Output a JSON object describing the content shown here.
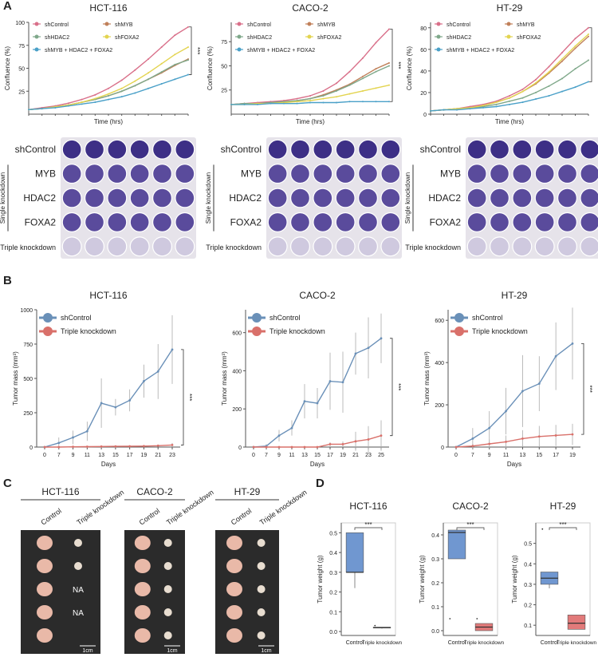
{
  "panel_labels": [
    "A",
    "B",
    "C",
    "D"
  ],
  "chart_data": [
    {
      "type": "line",
      "title": "HCT-116",
      "xlabel": "Time (hrs)",
      "ylabel": "Confluence (%)",
      "x": [
        0,
        12,
        24,
        36,
        48,
        60,
        72,
        84,
        96,
        108,
        120,
        132,
        144
      ],
      "xlim": [
        0,
        144
      ],
      "ylim": [
        0,
        100
      ],
      "yticks": [
        25,
        50,
        75,
        100
      ],
      "annotation": "***",
      "series": [
        {
          "name": "shControl",
          "color": "#d9708a",
          "values": [
            5,
            7,
            9,
            12,
            16,
            21,
            28,
            37,
            48,
            60,
            73,
            86,
            95
          ]
        },
        {
          "name": "shMYB",
          "color": "#c0805a",
          "values": [
            5,
            6,
            8,
            10,
            13,
            16,
            20,
            25,
            31,
            38,
            45,
            53,
            60
          ]
        },
        {
          "name": "shHDAC2",
          "color": "#7fa88a",
          "values": [
            5,
            6,
            8,
            10,
            13,
            16,
            20,
            25,
            31,
            38,
            46,
            54,
            59
          ]
        },
        {
          "name": "shFOXA2",
          "color": "#e3d450",
          "values": [
            5,
            6,
            8,
            10,
            13,
            17,
            22,
            28,
            36,
            45,
            55,
            65,
            73
          ]
        },
        {
          "name": "shMYB + HDAC2 + FOXA2",
          "color": "#4aa0c8",
          "values": [
            5,
            6,
            7,
            9,
            11,
            13,
            16,
            19,
            23,
            28,
            33,
            38,
            43
          ]
        }
      ]
    },
    {
      "type": "line",
      "title": "CACO-2",
      "xlabel": "Time (hrs)",
      "ylabel": "Confluence (%)",
      "x": [
        0,
        12,
        24,
        36,
        48,
        60,
        72,
        84,
        96,
        108,
        120,
        132,
        144
      ],
      "xlim": [
        0,
        144
      ],
      "ylim": [
        0,
        95
      ],
      "yticks": [
        25,
        50,
        75
      ],
      "annotation": "***",
      "series": [
        {
          "name": "shControl",
          "color": "#d9708a",
          "values": [
            10,
            11,
            12,
            13,
            14,
            16,
            19,
            24,
            32,
            44,
            58,
            74,
            88
          ]
        },
        {
          "name": "shMYB",
          "color": "#c0805a",
          "values": [
            10,
            11,
            11,
            12,
            13,
            14,
            16,
            20,
            25,
            31,
            39,
            47,
            53
          ]
        },
        {
          "name": "shHDAC2",
          "color": "#7fa88a",
          "values": [
            10,
            11,
            11,
            12,
            13,
            14,
            16,
            19,
            24,
            30,
            37,
            44,
            50
          ]
        },
        {
          "name": "shFOXA2",
          "color": "#e3d450",
          "values": [
            10,
            10,
            11,
            11,
            12,
            13,
            14,
            16,
            18,
            21,
            24,
            27,
            30
          ]
        },
        {
          "name": "shMYB + HDAC2 + FOXA2",
          "color": "#4aa0c8",
          "values": [
            10,
            10,
            10,
            11,
            11,
            11,
            12,
            12,
            12,
            13,
            13,
            13,
            13
          ]
        }
      ]
    },
    {
      "type": "line",
      "title": "HT-29",
      "xlabel": "Time (hrs)",
      "ylabel": "Confluence (%)",
      "x": [
        0,
        12,
        24,
        36,
        48,
        60,
        72,
        84,
        96,
        108,
        120,
        132,
        144
      ],
      "xlim": [
        0,
        144
      ],
      "ylim": [
        0,
        85
      ],
      "yticks": [
        0,
        20,
        40,
        60,
        80
      ],
      "annotation": "***",
      "series": [
        {
          "name": "shControl",
          "color": "#d9708a",
          "values": [
            3,
            4,
            5,
            7,
            9,
            12,
            17,
            23,
            32,
            44,
            57,
            70,
            80
          ]
        },
        {
          "name": "shMYB",
          "color": "#c0805a",
          "values": [
            3,
            4,
            5,
            6,
            8,
            11,
            15,
            21,
            28,
            38,
            49,
            61,
            72
          ]
        },
        {
          "name": "shHDAC2",
          "color": "#7fa88a",
          "values": [
            3,
            4,
            5,
            6,
            7,
            9,
            12,
            15,
            20,
            26,
            33,
            42,
            50
          ]
        },
        {
          "name": "shFOXA2",
          "color": "#e3d450",
          "values": [
            3,
            4,
            5,
            6,
            8,
            11,
            15,
            21,
            29,
            39,
            51,
            63,
            74
          ]
        },
        {
          "name": "shMYB + HDAC2 + FOXA2",
          "color": "#4aa0c8",
          "values": [
            3,
            4,
            4,
            5,
            6,
            7,
            9,
            11,
            14,
            17,
            21,
            25,
            30
          ]
        }
      ]
    },
    {
      "type": "line",
      "title": "HCT-116",
      "xlabel": "Days",
      "ylabel": "Tumor mass (mm³)",
      "categories": [
        "0",
        "7",
        "9",
        "11",
        "13",
        "15",
        "17",
        "19",
        "21",
        "23"
      ],
      "ylim": [
        0,
        1000
      ],
      "yticks": [
        0,
        250,
        500,
        750,
        1000
      ],
      "annotation": "***",
      "series": [
        {
          "name": "shControl",
          "color": "#6a90b8",
          "values": [
            0,
            30,
            70,
            115,
            320,
            290,
            340,
            480,
            550,
            710
          ],
          "errors": [
            0,
            40,
            50,
            70,
            180,
            60,
            80,
            120,
            200,
            250
          ]
        },
        {
          "name": "Triple knockdown",
          "color": "#d9706a",
          "values": [
            0,
            0,
            2,
            3,
            4,
            5,
            6,
            7,
            10,
            15
          ],
          "errors": [
            0,
            2,
            3,
            4,
            4,
            5,
            5,
            6,
            8,
            15
          ]
        }
      ]
    },
    {
      "type": "line",
      "title": "CACO-2",
      "xlabel": "Days",
      "ylabel": "Tumor mass (mm³)",
      "categories": [
        "0",
        "7",
        "9",
        "11",
        "13",
        "15",
        "17",
        "19",
        "21",
        "23",
        "25"
      ],
      "ylim": [
        0,
        720
      ],
      "yticks": [
        0,
        200,
        400,
        600
      ],
      "annotation": "***",
      "series": [
        {
          "name": "shControl",
          "color": "#6a90b8",
          "values": [
            0,
            5,
            60,
            100,
            240,
            230,
            345,
            340,
            490,
            520,
            570
          ],
          "errors": [
            0,
            10,
            30,
            40,
            90,
            80,
            150,
            160,
            110,
            160,
            130
          ]
        },
        {
          "name": "Triple knockdown",
          "color": "#d9706a",
          "values": [
            0,
            0,
            0,
            0,
            0,
            0,
            15,
            15,
            30,
            40,
            60
          ],
          "errors": [
            0,
            0,
            0,
            0,
            0,
            0,
            10,
            15,
            50,
            70,
            80
          ]
        }
      ]
    },
    {
      "type": "line",
      "title": "HT-29",
      "xlabel": "Days",
      "ylabel": "Tumor mass (mm³)",
      "categories": [
        "0",
        "7",
        "9",
        "11",
        "13",
        "15",
        "17",
        "19"
      ],
      "ylim": [
        0,
        650
      ],
      "yticks": [
        0,
        200,
        400,
        600
      ],
      "annotation": "***",
      "series": [
        {
          "name": "shControl",
          "color": "#6a90b8",
          "values": [
            0,
            40,
            90,
            170,
            265,
            300,
            430,
            490
          ],
          "errors": [
            0,
            50,
            80,
            110,
            170,
            130,
            160,
            170
          ]
        },
        {
          "name": "Triple knockdown",
          "color": "#d9706a",
          "values": [
            0,
            5,
            15,
            25,
            40,
            50,
            55,
            60
          ],
          "errors": [
            0,
            10,
            20,
            30,
            40,
            50,
            50,
            50
          ]
        }
      ]
    },
    {
      "type": "box",
      "title": "HCT-116",
      "ylabel": "Tumor weight (g)",
      "ylim": [
        -0.02,
        0.55
      ],
      "yticks": [
        {
          "value": 0,
          "label": "0.0"
        },
        0.1,
        0.2,
        0.3,
        0.4,
        0.5
      ],
      "annotation": "***",
      "boxes": [
        {
          "name": "Control",
          "color": "#7097d0",
          "min": 0.22,
          "q1": 0.3,
          "median": 0.3,
          "q3": 0.5,
          "max": 0.5,
          "outliers": []
        },
        {
          "name": "Triple knockdown",
          "color": "#e27a7a",
          "min": 0.015,
          "q1": 0.02,
          "median": 0.02,
          "q3": 0.022,
          "max": 0.022,
          "outliers": [
            0.03
          ]
        }
      ]
    },
    {
      "type": "box",
      "title": "CACO-2",
      "ylabel": "Tumor weight (g)",
      "ylim": [
        -0.02,
        0.45
      ],
      "yticks": [
        {
          "value": 0,
          "label": "0.0"
        },
        0.1,
        0.2,
        0.3,
        0.4
      ],
      "annotation": "***",
      "boxes": [
        {
          "name": "Control",
          "color": "#7097d0",
          "min": 0.3,
          "q1": 0.3,
          "median": 0.41,
          "q3": 0.42,
          "max": 0.42,
          "outliers": [
            0.05
          ]
        },
        {
          "name": "Triple knockdown",
          "color": "#e27a7a",
          "min": 0,
          "q1": 0,
          "median": 0.015,
          "q3": 0.03,
          "max": 0.03,
          "outliers": [
            0.05
          ]
        }
      ]
    },
    {
      "type": "box",
      "title": "HT-29",
      "ylabel": "Tumor weight (g)",
      "ylim": [
        0.05,
        0.6
      ],
      "yticks": [
        0.1,
        0.2,
        0.3,
        0.4,
        0.5
      ],
      "annotation": "***",
      "boxes": [
        {
          "name": "Control",
          "color": "#7097d0",
          "min": 0.28,
          "q1": 0.3,
          "median": 0.33,
          "q3": 0.36,
          "max": 0.36,
          "outliers": [
            0.57
          ]
        },
        {
          "name": "Triple knockdown",
          "color": "#e27a7a",
          "min": 0.08,
          "q1": 0.08,
          "median": 0.11,
          "q3": 0.15,
          "max": 0.15,
          "outliers": []
        }
      ]
    }
  ],
  "plates": [
    {
      "row_labels": [
        "shControl",
        "MYB",
        "HDAC2",
        "FOXA2",
        "Triple knockdown"
      ],
      "group_label": "Single knockdown"
    },
    {
      "row_labels": [
        "shControl",
        "MYB",
        "HDAC2",
        "FOXA2",
        "Triple knockdown"
      ],
      "group_label": "Single knockdown"
    },
    {
      "row_labels": [
        "shControl",
        "MYB",
        "HDAC2",
        "FOXA2",
        "Triple knockdown"
      ],
      "group_label": "Single knockdown"
    }
  ],
  "photos": [
    {
      "title": "HCT-116",
      "columns": [
        "Control",
        "Triple knockdown"
      ],
      "annotations": [
        "NA",
        "NA"
      ],
      "scale": "1cm"
    },
    {
      "title": "CACO-2",
      "columns": [
        "Control",
        "Triple knockdown"
      ],
      "scale": "1cm"
    },
    {
      "title": "HT-29",
      "columns": [
        "Control",
        "Triple knockdown"
      ],
      "scale": "1cm"
    }
  ]
}
